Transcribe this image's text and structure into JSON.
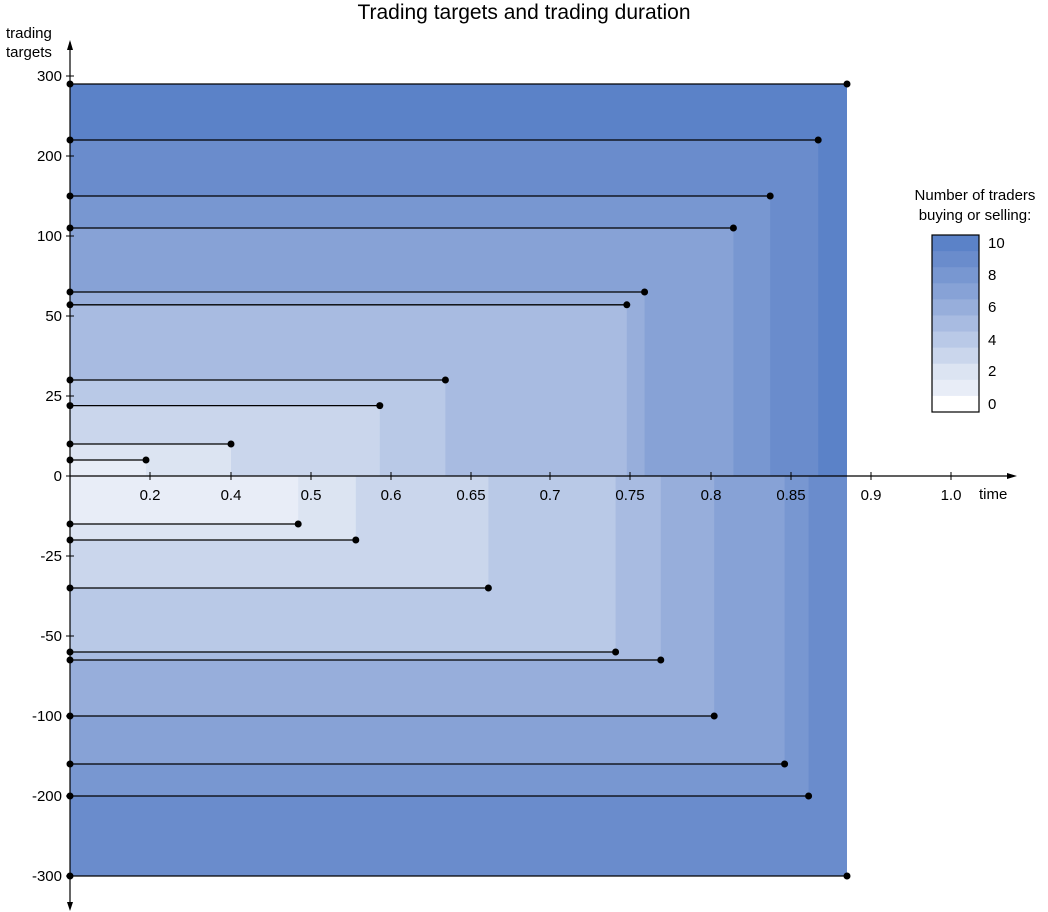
{
  "chart_data": {
    "type": "area",
    "title": "Trading targets and trading duration",
    "xlabel": "time",
    "ylabel": "trading targets",
    "x_ticks": [
      "0.2",
      "0.4",
      "0.5",
      "0.6",
      "0.65",
      "0.7",
      "0.75",
      "0.8",
      "0.85",
      "0.9",
      "1.0"
    ],
    "y_ticks": [
      "300",
      "200",
      "100",
      "50",
      "25",
      "0",
      "-25",
      "-50",
      "-100",
      "-200",
      "-300"
    ],
    "traders": [
      {
        "target": 290,
        "end": 0.885
      },
      {
        "target": 220,
        "end": 0.867
      },
      {
        "target": 150,
        "end": 0.837
      },
      {
        "target": 110,
        "end": 0.814
      },
      {
        "target": 65,
        "end": 0.759
      },
      {
        "target": 57,
        "end": 0.748
      },
      {
        "target": 30,
        "end": 0.634
      },
      {
        "target": 22,
        "end": 0.586
      },
      {
        "target": 10,
        "end": 0.4
      },
      {
        "target": 5,
        "end": 0.19
      },
      {
        "target": -15,
        "end": 0.484
      },
      {
        "target": -20,
        "end": 0.556
      },
      {
        "target": -35,
        "end": 0.661
      },
      {
        "target": -60,
        "end": 0.741
      },
      {
        "target": -65,
        "end": 0.769
      },
      {
        "target": -100,
        "end": 0.802
      },
      {
        "target": -160,
        "end": 0.846
      },
      {
        "target": -200,
        "end": 0.861
      },
      {
        "target": -300,
        "end": 0.885
      }
    ],
    "legend": {
      "title_line1": "Number of traders",
      "title_line2": "buying or selling:",
      "ticks": [
        "10",
        "8",
        "6",
        "4",
        "2",
        "0"
      ],
      "colors": [
        "#5b82c8",
        "#6a8ccc",
        "#7897d1",
        "#87a2d6",
        "#97aedb",
        "#a8bbe1",
        "#b9c9e7",
        "#cad6ec",
        "#dce4f2",
        "#e8edf7",
        "#ffffff"
      ]
    },
    "grid": false,
    "legend_position": "right"
  }
}
